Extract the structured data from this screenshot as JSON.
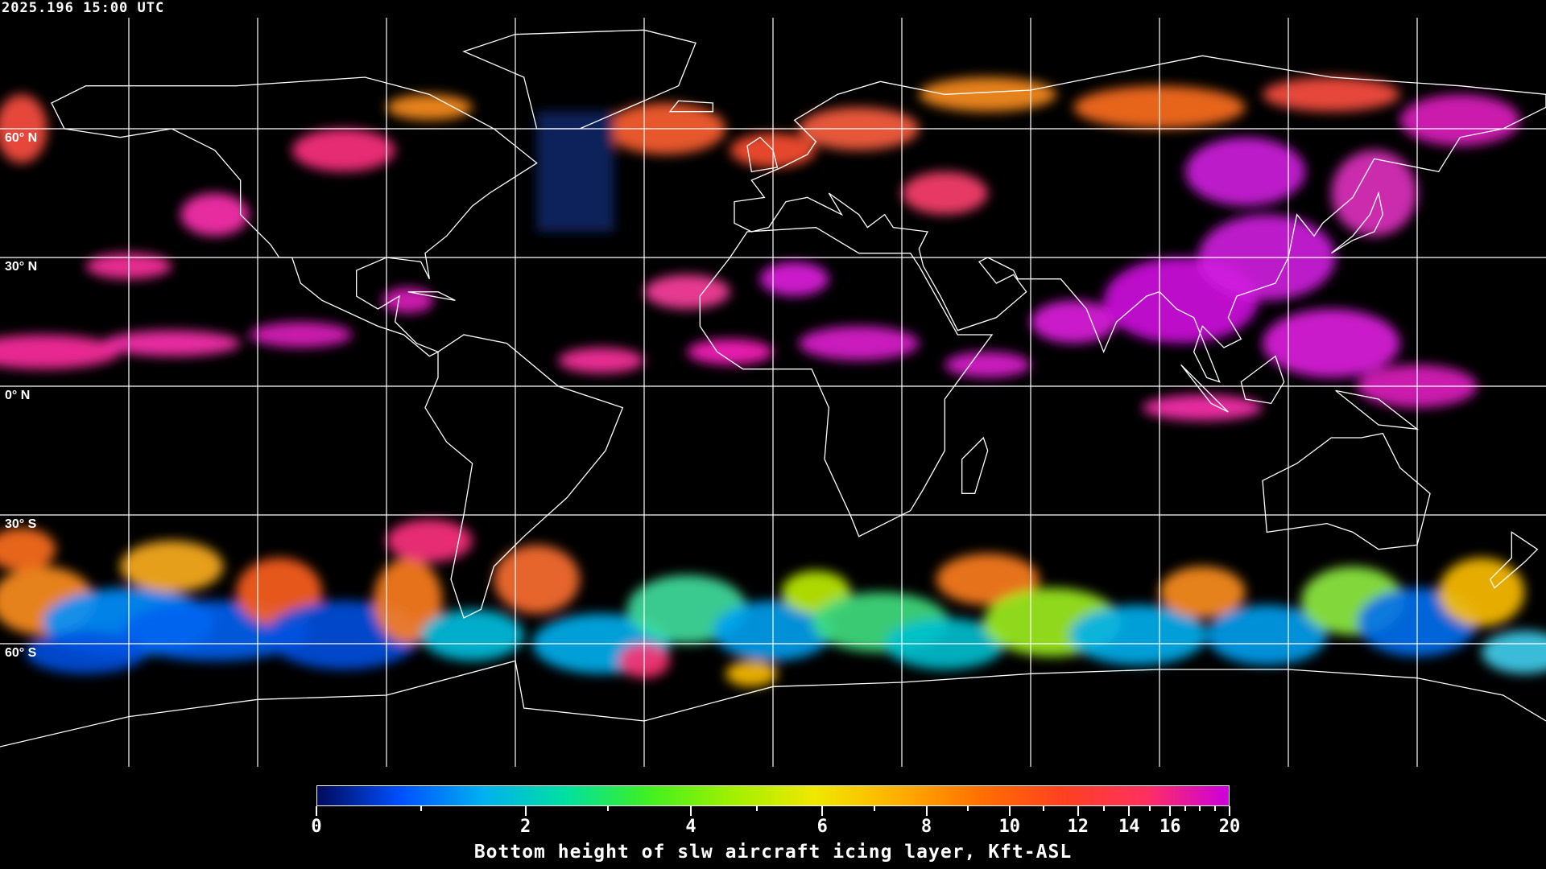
{
  "timestamp": "2025.196 15:00 UTC",
  "lat_labels": [
    "60° N",
    "30° N",
    "0° N",
    "30° S",
    "60° S"
  ],
  "colorbar": {
    "title": "Bottom height of slw aircraft icing layer, Kft-ASL",
    "min": 0,
    "max": 20,
    "tick_labels": [
      "0",
      "2",
      "4",
      "6",
      "8",
      "10",
      "12",
      "14",
      "16",
      "20"
    ],
    "minor_ticks": [
      1,
      3,
      5,
      7,
      9,
      11,
      13,
      15,
      17,
      18,
      19
    ],
    "colors": [
      "#000a5a",
      "#0050ff",
      "#00b0f0",
      "#00e0a0",
      "#40f020",
      "#a0f000",
      "#f0e800",
      "#ffb000",
      "#ff7000",
      "#ff4020",
      "#ff3060",
      "#cc00dd"
    ]
  },
  "map": {
    "projection": "equirectangular",
    "graticule_spacing_deg": 30,
    "coastline_color": "#ffffff",
    "background": "#000000"
  }
}
